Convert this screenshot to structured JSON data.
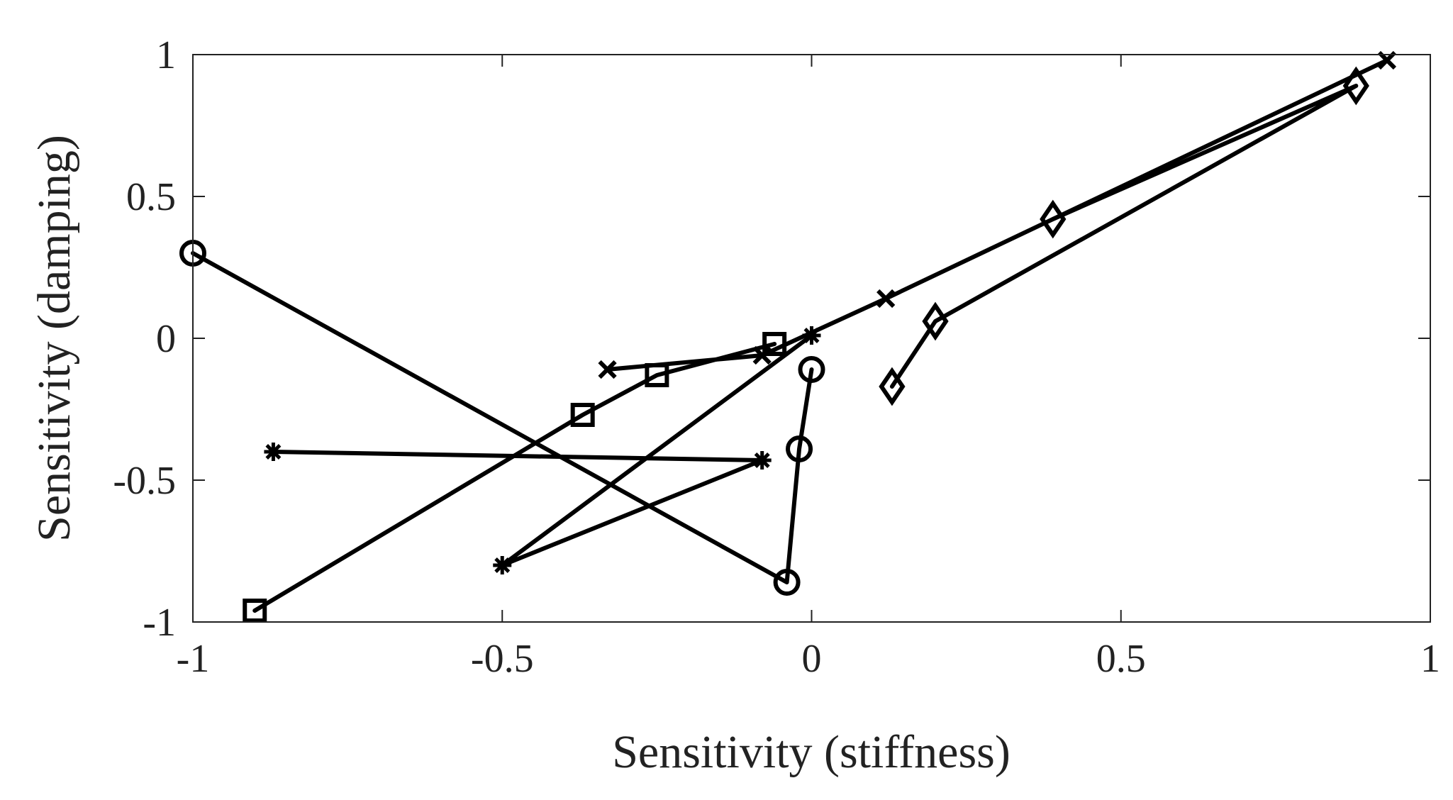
{
  "chart_data": {
    "type": "line",
    "title": "",
    "xlabel": "Sensitivity (stiffness)",
    "ylabel": "Sensitivity (damping)",
    "xlim": [
      -1,
      1
    ],
    "ylim": [
      -1,
      1
    ],
    "xticks": [
      -1,
      -0.5,
      0,
      0.5,
      1
    ],
    "yticks": [
      -1,
      -0.5,
      0,
      0.5,
      1
    ],
    "xtick_labels": [
      "-1",
      "-0.5",
      "0",
      "0.5",
      "1"
    ],
    "ytick_labels": [
      "-1",
      "-0.5",
      "0",
      "0.5",
      "1"
    ],
    "grid": false,
    "legend": "none",
    "line_color": "#000000",
    "series": [
      {
        "name": "circle series",
        "marker": "circle",
        "x": [
          -1.0,
          -0.04,
          -0.02,
          0.0
        ],
        "y": [
          0.3,
          -0.86,
          -0.39,
          -0.11
        ]
      },
      {
        "name": "square series",
        "marker": "square",
        "x": [
          -0.9,
          -0.37,
          -0.25,
          -0.06
        ],
        "y": [
          -0.96,
          -0.27,
          -0.13,
          -0.02
        ]
      },
      {
        "name": "asterisk series",
        "marker": "asterisk",
        "x": [
          -0.87,
          -0.08,
          -0.5,
          0.0
        ],
        "y": [
          -0.4,
          -0.43,
          -0.8,
          0.01
        ]
      },
      {
        "name": "cross series",
        "marker": "cross",
        "x": [
          -0.33,
          -0.08,
          0.12,
          0.93
        ],
        "y": [
          -0.11,
          -0.06,
          0.14,
          0.98
        ]
      },
      {
        "name": "diamond series",
        "marker": "diamond",
        "x": [
          0.13,
          0.2,
          0.88,
          0.39
        ],
        "y": [
          -0.17,
          0.06,
          0.89,
          0.42
        ]
      }
    ]
  }
}
